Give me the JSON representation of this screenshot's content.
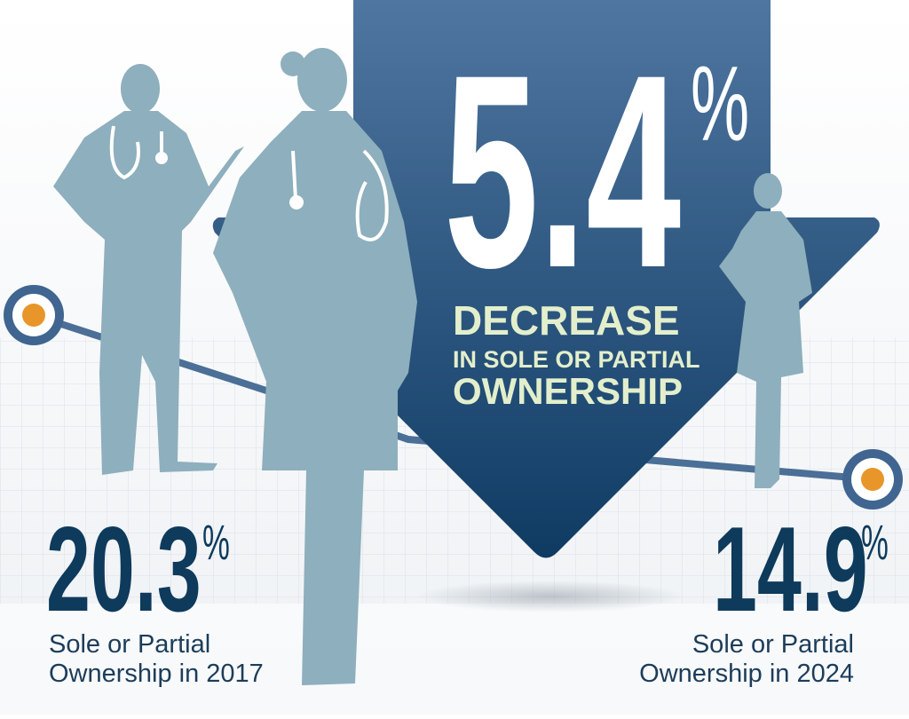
{
  "headline": {
    "value": "5.4",
    "unit": "%",
    "line1": "DECREASE",
    "line2": "IN SOLE OR PARTIAL",
    "line3": "OWNERSHIP"
  },
  "left_stat": {
    "value": "20.3",
    "unit": "%",
    "line1": "Sole or Partial",
    "line2": "Ownership in 2017"
  },
  "right_stat": {
    "value": "14.9",
    "unit": "%",
    "line1": "Sole or Partial",
    "line2": "Ownership in 2024"
  }
}
